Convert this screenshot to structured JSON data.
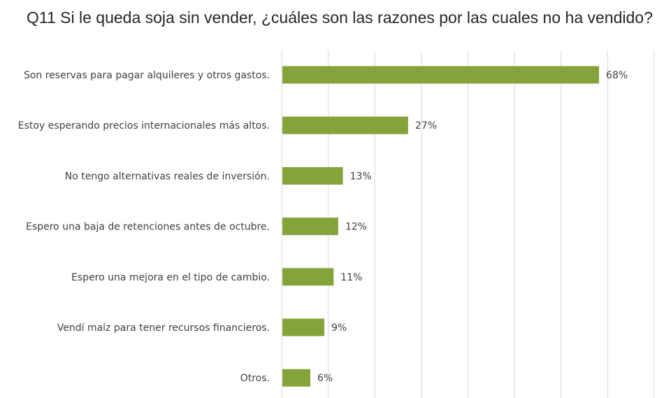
{
  "chart_data": {
    "type": "bar",
    "orientation": "horizontal",
    "title": "Q11  Si le queda soja sin vender, ¿cuáles son las razones por las cuales no ha vendido?",
    "categories": [
      "Son reservas para pagar alquileres y otros gastos.",
      "Estoy esperando precios internacionales más altos.",
      "No tengo alternativas reales de inversión.",
      "Espero una baja de retenciones antes de octubre.",
      "Espero una mejora en el tipo de cambio.",
      "Vendí maíz para tener recursos financieros.",
      "Otros."
    ],
    "values": [
      68,
      27,
      13,
      12,
      11,
      9,
      6
    ],
    "data_labels": [
      "68%",
      "27%",
      "13%",
      "12%",
      "11%",
      "9%",
      "6%"
    ],
    "unit": "%",
    "xlim": [
      0,
      80
    ],
    "grid": true,
    "legend": "none",
    "bar_color": "#84A33A",
    "grid_color": "#D9D9D9"
  }
}
